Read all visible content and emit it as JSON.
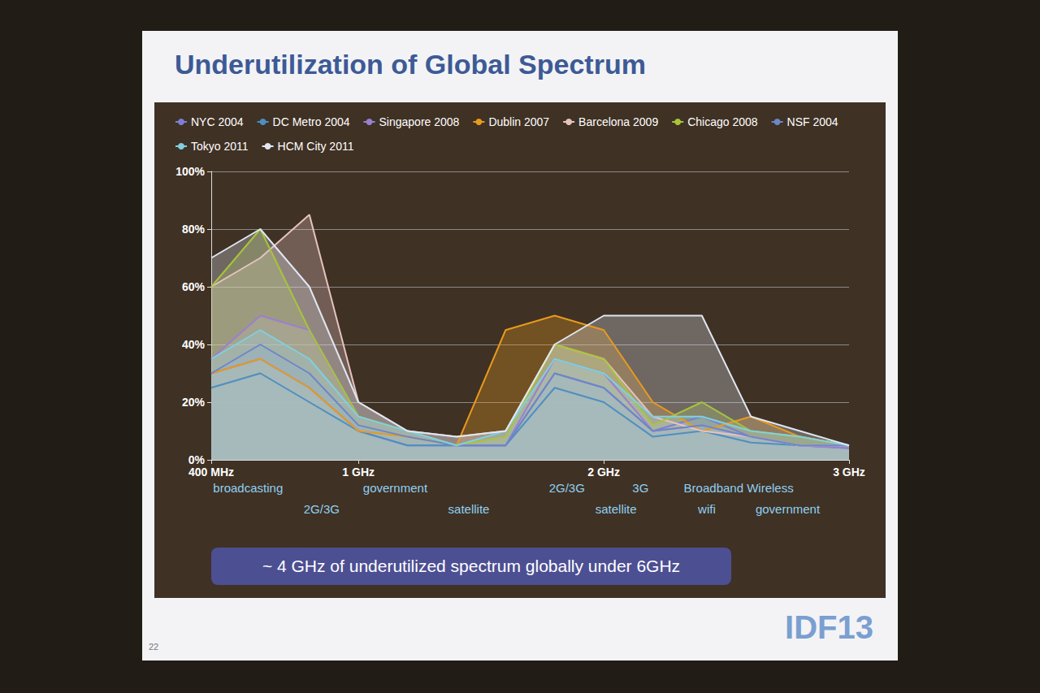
{
  "chart_data": {
    "type": "area",
    "title": "Underutilization of Global Spectrum",
    "annotation": "~ 4 GHz of underutilized spectrum globally under 6GHz",
    "x": [
      400,
      600,
      800,
      1000,
      1200,
      1400,
      1600,
      1800,
      2000,
      2200,
      2400,
      2600,
      2800,
      3000
    ],
    "xlim": [
      400,
      3000
    ],
    "xticks": [
      {
        "value": 400,
        "label": "400 MHz"
      },
      {
        "value": 1000,
        "label": "1 GHz"
      },
      {
        "value": 2000,
        "label": "2 GHz"
      },
      {
        "value": 3000,
        "label": "3 GHz"
      }
    ],
    "ylim": [
      0,
      100
    ],
    "yticks": [
      {
        "value": 0,
        "label": "0%"
      },
      {
        "value": 20,
        "label": "20%"
      },
      {
        "value": 40,
        "label": "40%"
      },
      {
        "value": 60,
        "label": "60%"
      },
      {
        "value": 80,
        "label": "80%"
      },
      {
        "value": 100,
        "label": "100%"
      }
    ],
    "grid": true,
    "legend": "top",
    "band_labels": [
      {
        "text": "broadcasting",
        "x": 550
      },
      {
        "text": "2G/3G",
        "x": 850
      },
      {
        "text": "government",
        "x": 1150
      },
      {
        "text": "satellite",
        "x": 1450
      },
      {
        "text": "2G/3G",
        "x": 1850
      },
      {
        "text": "satellite",
        "x": 2050
      },
      {
        "text": "3G",
        "x": 2150
      },
      {
        "text": "wifi",
        "x": 2420
      },
      {
        "text": "Broadband Wireless",
        "x": 2550
      },
      {
        "text": "government",
        "x": 2750
      }
    ],
    "series": [
      {
        "name": "NYC 2004",
        "color": "#7b7fd6",
        "values": [
          30,
          35,
          25,
          10,
          5,
          5,
          5,
          30,
          25,
          10,
          15,
          8,
          5,
          5
        ]
      },
      {
        "name": "DC Metro 2004",
        "color": "#4d8fc1",
        "values": [
          25,
          30,
          20,
          10,
          5,
          5,
          5,
          25,
          20,
          8,
          10,
          6,
          5,
          4
        ]
      },
      {
        "name": "Singapore 2008",
        "color": "#9b7fd0",
        "values": [
          35,
          50,
          45,
          15,
          10,
          5,
          5,
          35,
          30,
          10,
          12,
          8,
          5,
          4
        ]
      },
      {
        "name": "Dublin 2007",
        "color": "#e89a1e",
        "values": [
          30,
          35,
          25,
          10,
          8,
          5,
          45,
          50,
          45,
          20,
          10,
          15,
          8,
          5
        ]
      },
      {
        "name": "Barcelona 2009",
        "color": "#e6c3c0",
        "values": [
          60,
          70,
          85,
          20,
          10,
          8,
          10,
          40,
          35,
          15,
          10,
          8,
          5,
          5
        ]
      },
      {
        "name": "Chicago 2008",
        "color": "#a8c43a",
        "values": [
          60,
          80,
          45,
          15,
          10,
          5,
          8,
          40,
          35,
          12,
          20,
          10,
          8,
          5
        ]
      },
      {
        "name": "NSF 2004",
        "color": "#6d86c8",
        "values": [
          30,
          40,
          30,
          12,
          8,
          5,
          5,
          30,
          25,
          10,
          12,
          8,
          5,
          5
        ]
      },
      {
        "name": "Tokyo 2011",
        "color": "#7fd0e0",
        "values": [
          35,
          45,
          35,
          15,
          10,
          5,
          10,
          35,
          30,
          15,
          15,
          10,
          8,
          5
        ]
      },
      {
        "name": "HCM City 2011",
        "color": "#dfe6f2",
        "values": [
          70,
          80,
          60,
          20,
          10,
          8,
          10,
          40,
          50,
          50,
          50,
          15,
          10,
          5
        ]
      }
    ]
  },
  "slide": {
    "number": "22",
    "logo": "IDF13"
  }
}
